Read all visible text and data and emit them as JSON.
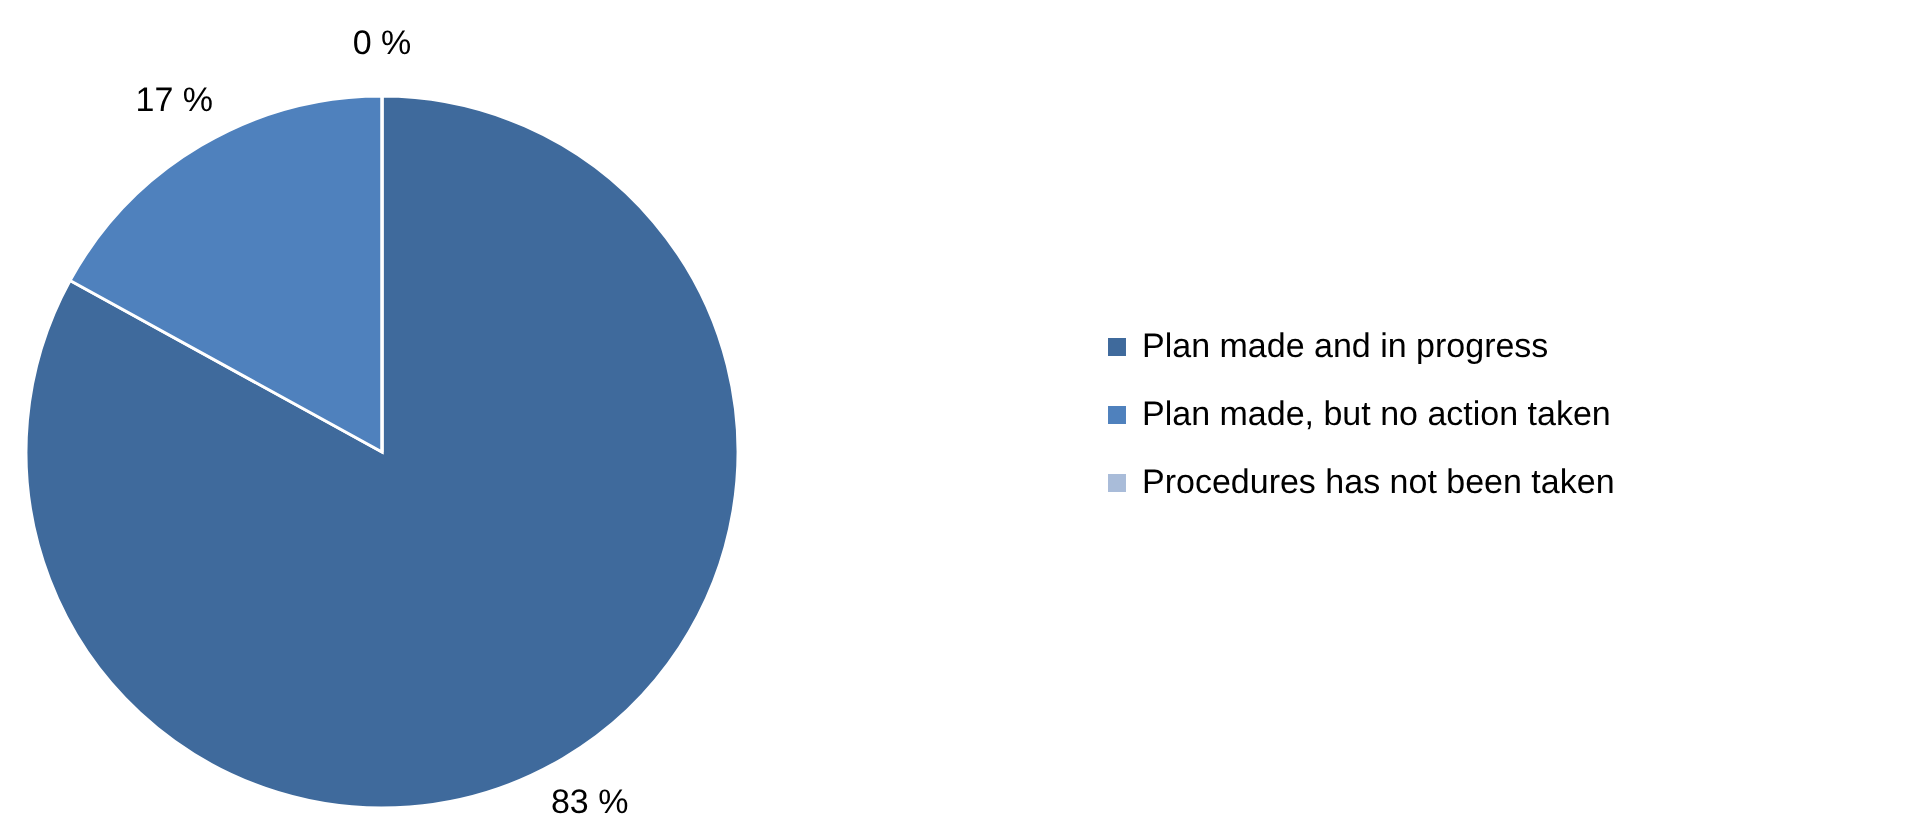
{
  "chart_data": {
    "type": "pie",
    "categories": [
      "Plan made and in progress",
      "Plan made, but no action taken",
      "Procedures has not been taken"
    ],
    "values": [
      83,
      17,
      0
    ],
    "colors": [
      "#3f6a9c",
      "#4f81bd",
      "#a9bcd9"
    ],
    "value_labels": [
      "83 %",
      "17 %",
      "0 %"
    ],
    "legend": "right"
  }
}
